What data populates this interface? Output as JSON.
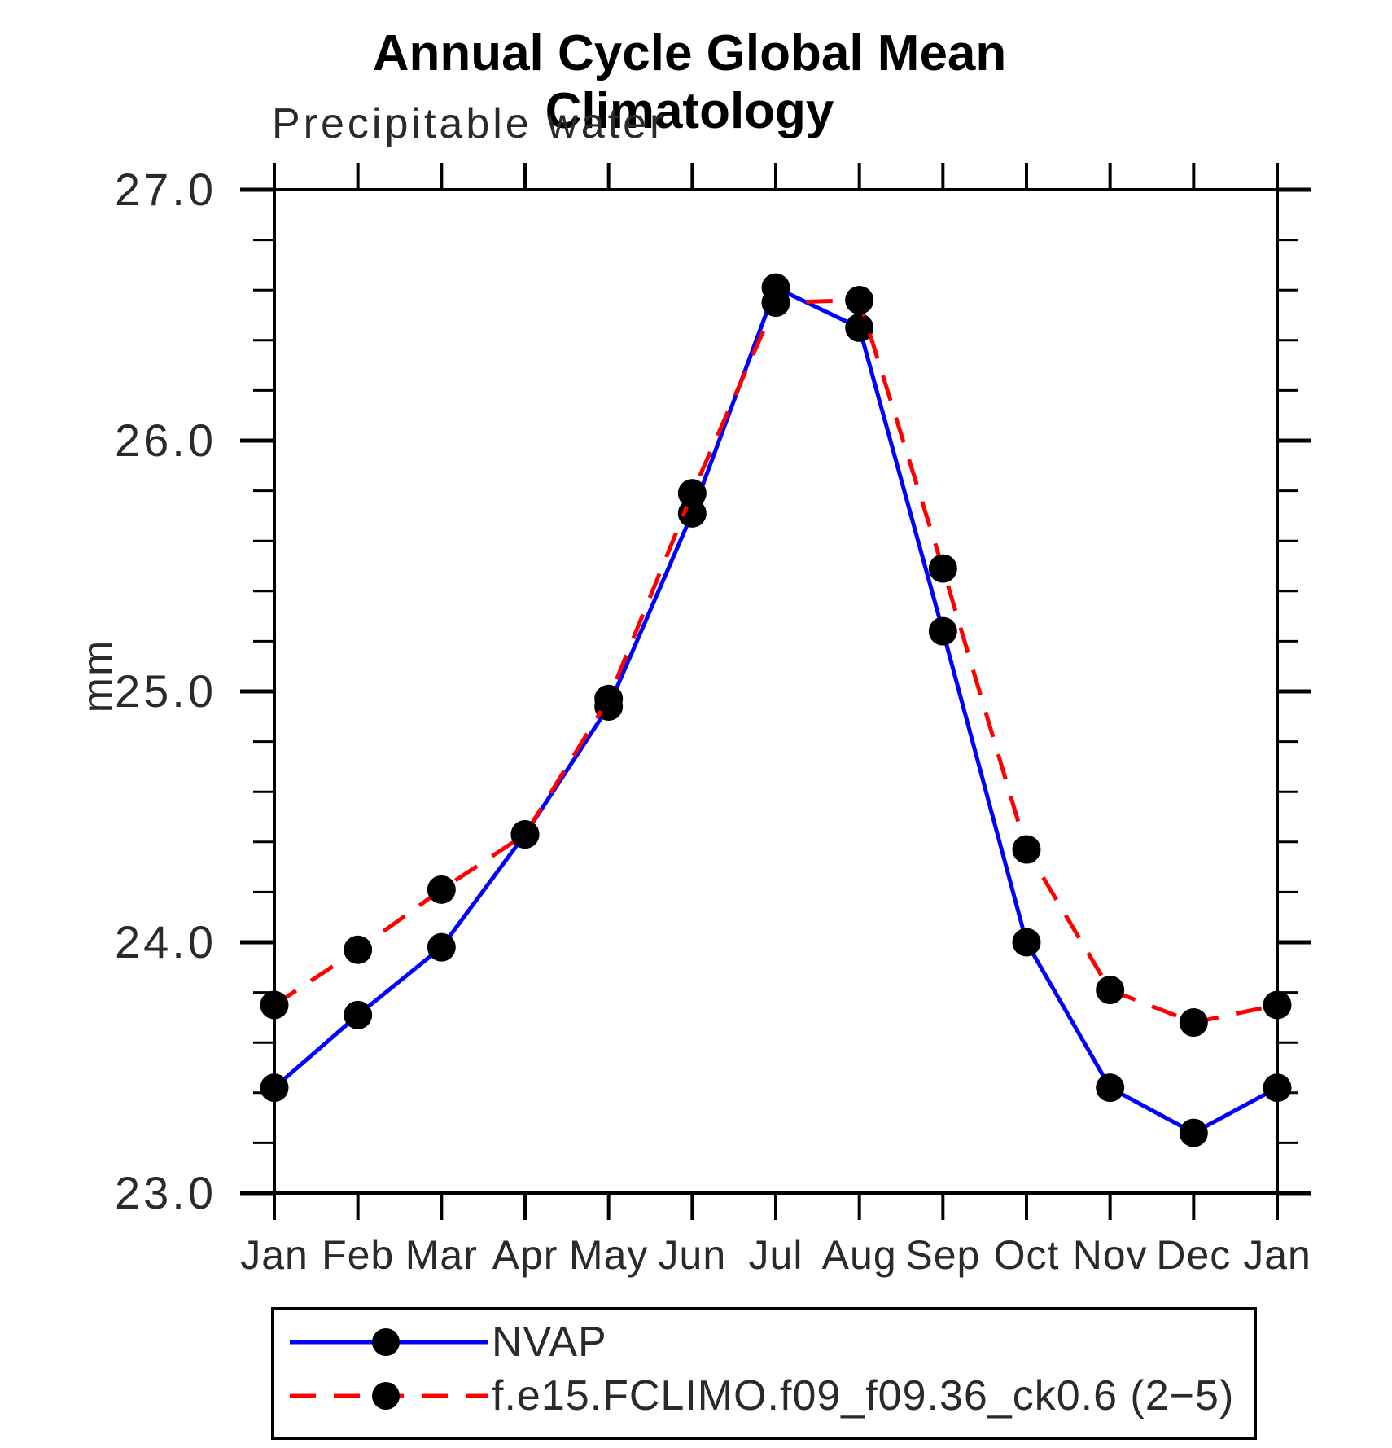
{
  "title": "Annual Cycle Global Mean Climatology",
  "subtitle": "Precipitable water",
  "ylabel": "mm",
  "legend": [
    {
      "label": "NVAP",
      "color": "#0000ff",
      "style": "solid",
      "marker_color": "#000000"
    },
    {
      "label": "f.e15.FCLIMO.f09_f09.36_ck0.6 (2−5)",
      "color": "#ff0000",
      "style": "dashed",
      "marker_color": "#000000"
    }
  ],
  "chart_data": {
    "type": "line",
    "title": "Annual Cycle Global Mean Climatology",
    "subtitle": "Precipitable water",
    "xlabel": "",
    "ylabel": "mm",
    "categories": [
      "Jan",
      "Feb",
      "Mar",
      "Apr",
      "May",
      "Jun",
      "Jul",
      "Aug",
      "Sep",
      "Oct",
      "Nov",
      "Dec",
      "Jan"
    ],
    "series": [
      {
        "name": "NVAP",
        "color": "#0000ff",
        "dash": "solid",
        "values": [
          23.42,
          23.71,
          23.98,
          24.43,
          24.94,
          25.71,
          26.61,
          26.45,
          25.24,
          24.0,
          23.42,
          23.24,
          23.42
        ]
      },
      {
        "name": "f.e15.FCLIMO.f09_f09.36_ck0.6 (2−5)",
        "color": "#ff0000",
        "dash": "dashed",
        "values": [
          23.75,
          23.97,
          24.21,
          24.43,
          24.97,
          25.79,
          26.55,
          26.56,
          25.49,
          24.37,
          23.81,
          23.68,
          23.75
        ]
      }
    ],
    "ylim": [
      23.0,
      27.0
    ],
    "ytick_values": [
      27.0,
      26.0,
      25.0,
      24.0,
      23.0
    ],
    "ytick_labels": [
      "27.0",
      "26.0",
      "25.0",
      "24.0",
      "23.0"
    ],
    "minor_ticks_per_major": 5,
    "grid": false,
    "legend_position": "bottom",
    "marker": "circle",
    "marker_color": "#000000"
  }
}
